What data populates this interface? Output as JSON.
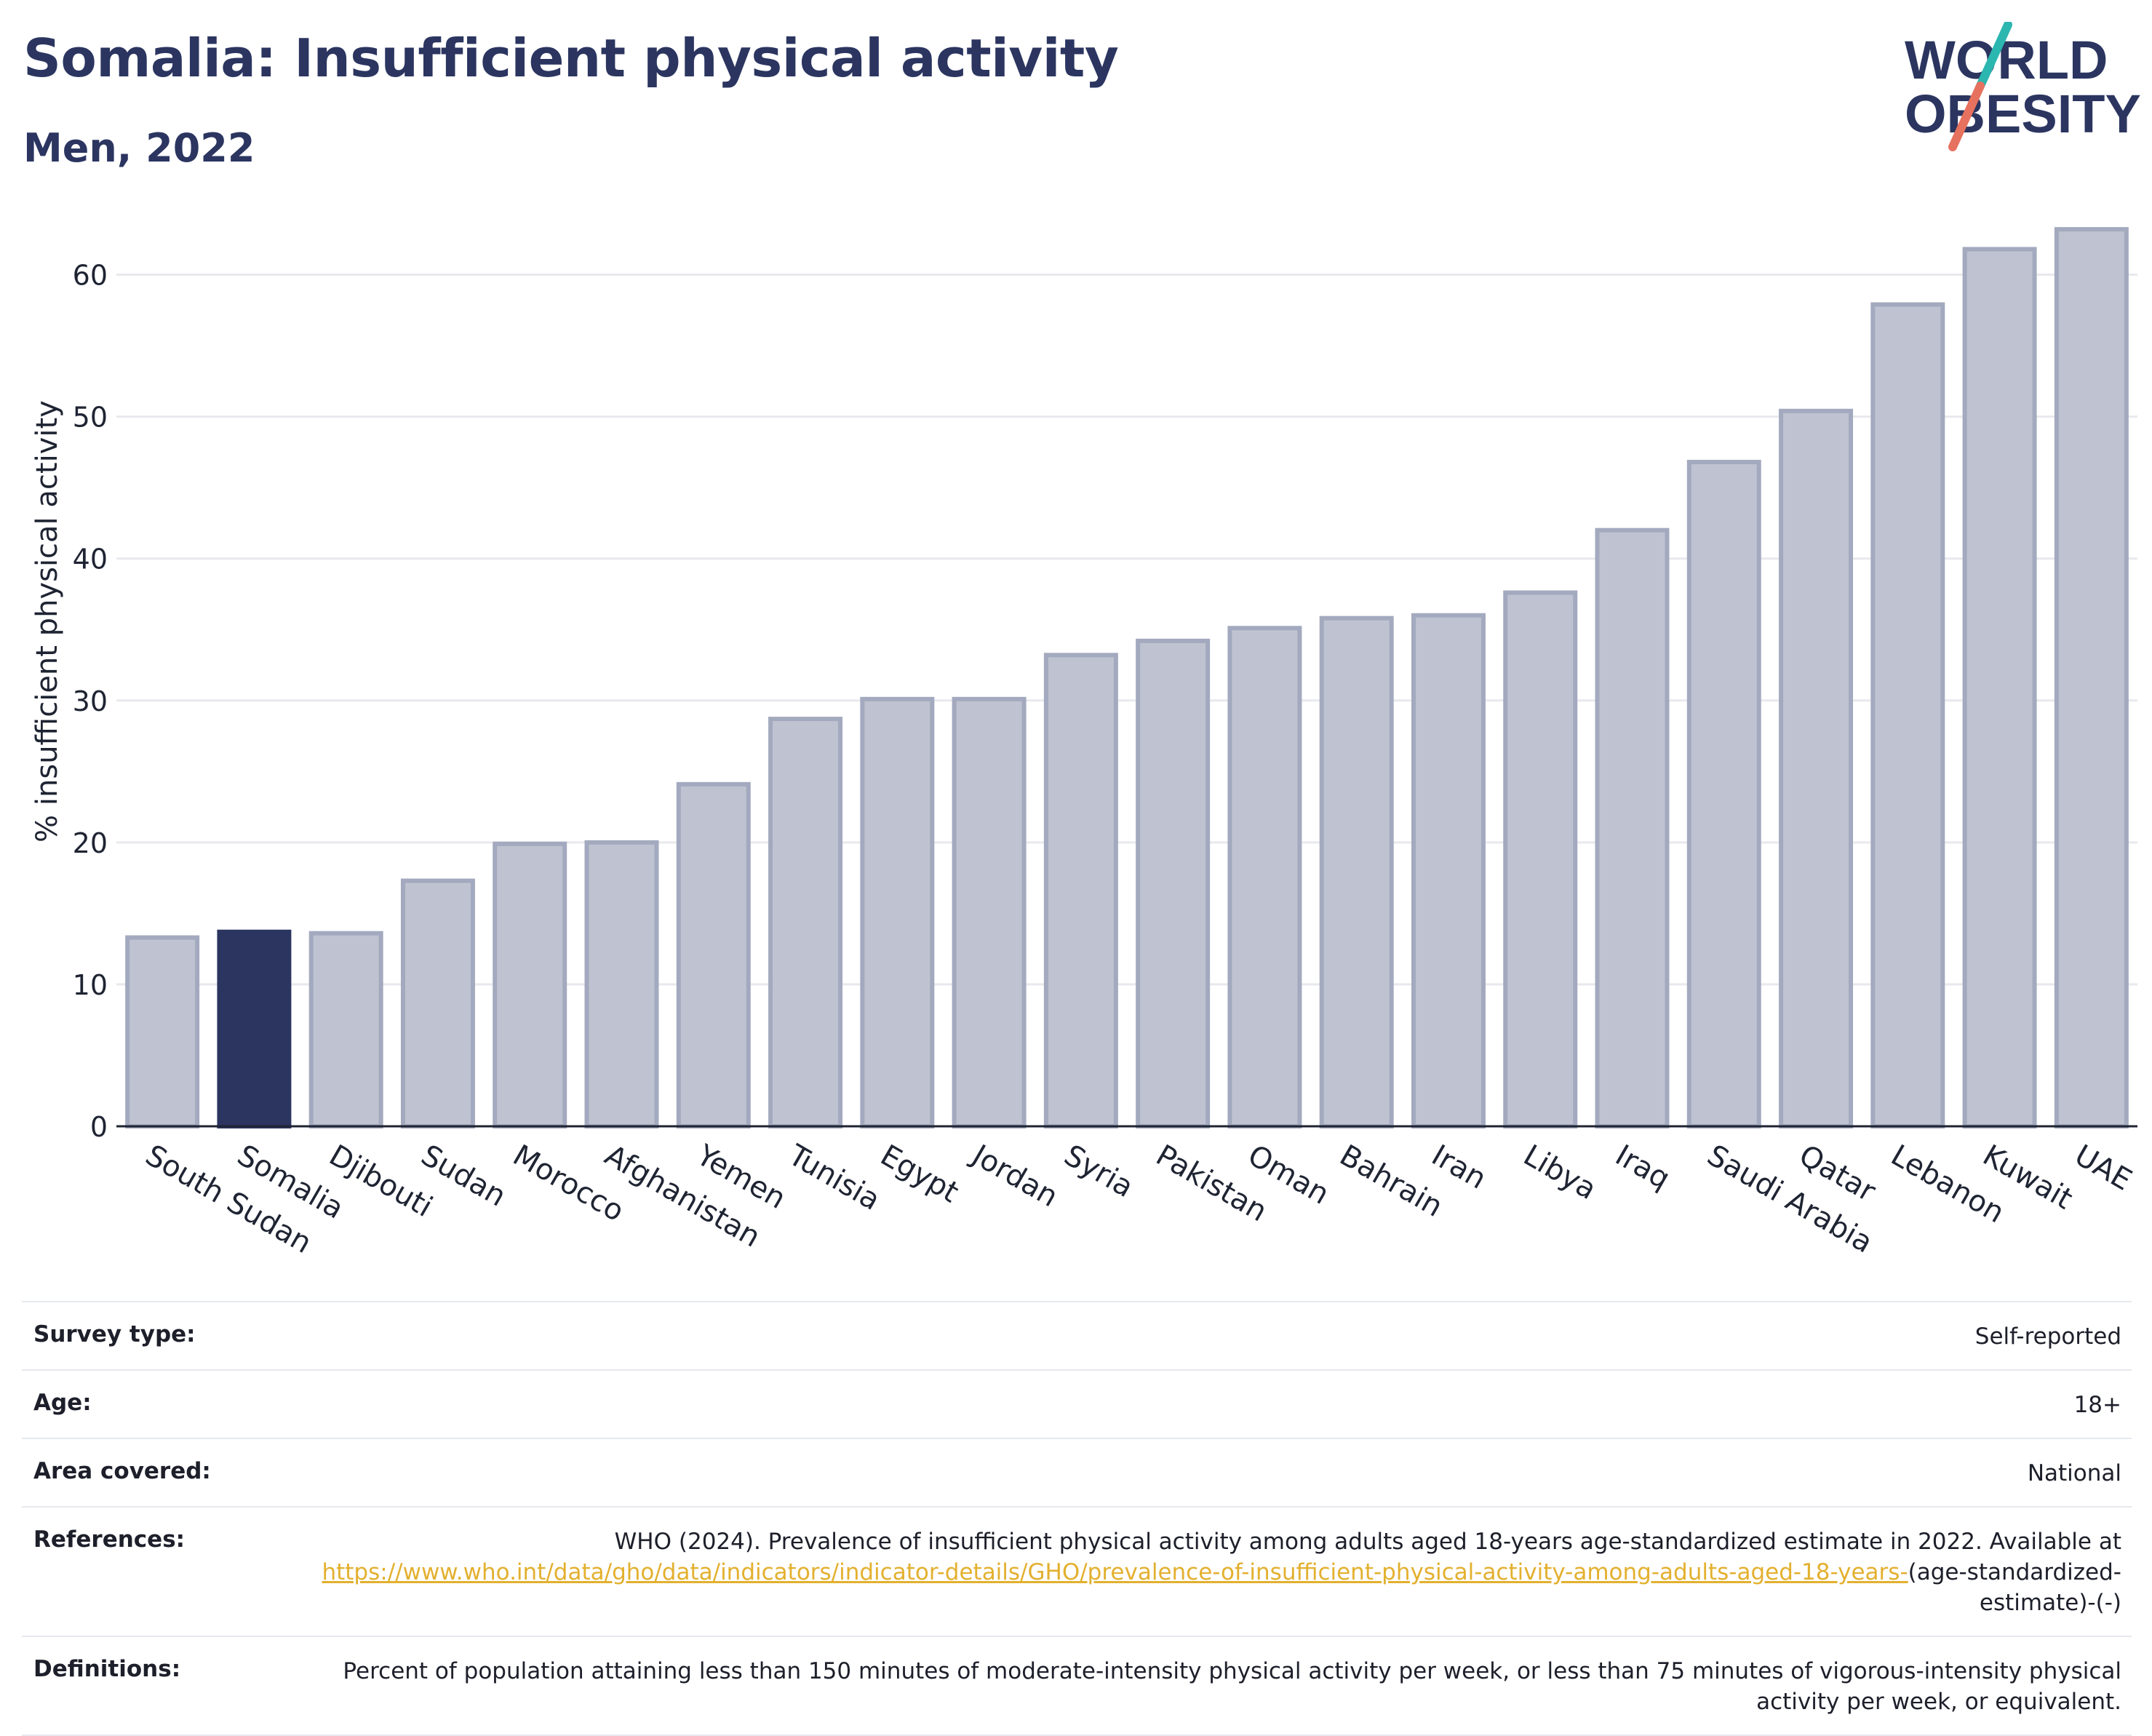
{
  "header": {
    "title": "Somalia: Insufficient physical activity",
    "subtitle": "Men, 2022"
  },
  "logo": {
    "text_line1": "WORLD",
    "text_line2": "OBESITY",
    "colors": {
      "text": "#2b3560",
      "slash_top": "#2bb6b0",
      "slash_bottom": "#e7715f"
    }
  },
  "colors": {
    "bar_default": "#bfc3d1",
    "bar_default_border": "#a3a9be",
    "bar_highlight": "#2b3560",
    "grid": "#e8e9ee",
    "axis": "#1f2433",
    "link": "#e3b02f"
  },
  "chart_data": {
    "type": "bar",
    "ylabel": "% insufficient physical activity",
    "xlabel": "",
    "ylim": [
      0,
      65
    ],
    "yticks": [
      0,
      10,
      20,
      30,
      40,
      50,
      60
    ],
    "grid": true,
    "highlight": "Somalia",
    "categories": [
      "South Sudan",
      "Somalia",
      "Djibouti",
      "Sudan",
      "Morocco",
      "Afghanistan",
      "Yemen",
      "Tunisia",
      "Egypt",
      "Jordan",
      "Syria",
      "Pakistan",
      "Oman",
      "Bahrain",
      "Iran",
      "Libya",
      "Iraq",
      "Saudi Arabia",
      "Qatar",
      "Lebanon",
      "Kuwait",
      "UAE"
    ],
    "values": [
      13.3,
      13.7,
      13.6,
      17.3,
      19.9,
      20.0,
      24.1,
      28.7,
      30.1,
      30.1,
      33.2,
      34.2,
      35.1,
      35.8,
      36.0,
      37.6,
      42.0,
      46.8,
      50.4,
      57.9,
      61.8,
      63.2
    ]
  },
  "meta": [
    {
      "key": "Survey type:",
      "value": "Self-reported"
    },
    {
      "key": "Age:",
      "value": "18+"
    },
    {
      "key": "Area covered:",
      "value": "National"
    },
    {
      "key": "References:",
      "value_pre": "WHO (2024). Prevalence of insufficient physical activity among adults aged 18-years age-standardized estimate in 2022. Available at",
      "link": "https://www.who.int/data/gho/data/indicators/indicator-details/GHO/prevalence-of-insufficient-physical-activity-among-adults-aged-18-years-",
      "value_post": "(age-standardized-estimate)-(-)"
    },
    {
      "key": "Definitions:",
      "value": "Percent of population attaining less than 150 minutes of moderate-intensity physical activity per week, or less than 75 minutes of vigorous-intensity physical activity per week, or equivalent."
    }
  ]
}
